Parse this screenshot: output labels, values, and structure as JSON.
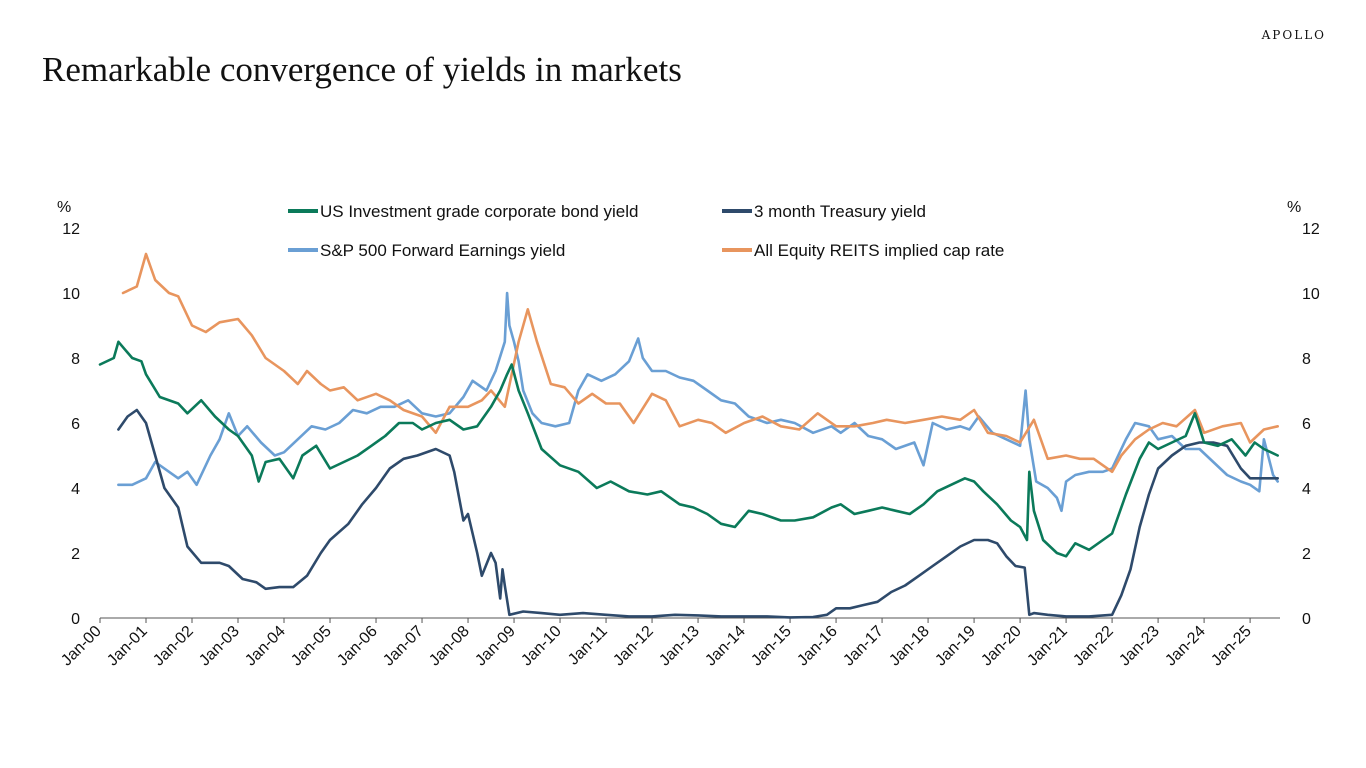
{
  "header": {
    "brand": "APOLLO",
    "title": "Remarkable convergence of  yields in markets"
  },
  "chart_data": {
    "type": "line",
    "title": "Remarkable convergence of  yields in markets",
    "y_unit_left": "%",
    "y_unit_right": "%",
    "ylim": [
      0,
      12
    ],
    "yticks": [
      0,
      2,
      4,
      6,
      8,
      10,
      12
    ],
    "xlim": [
      2000.0,
      2025.65
    ],
    "xtick_labels": [
      "Jan-00",
      "Jan-01",
      "Jan-02",
      "Jan-03",
      "Jan-04",
      "Jan-05",
      "Jan-06",
      "Jan-07",
      "Jan-08",
      "Jan-09",
      "Jan-10",
      "Jan-11",
      "Jan-12",
      "Jan-13",
      "Jan-14",
      "Jan-15",
      "Jan-16",
      "Jan-17",
      "Jan-18",
      "Jan-19",
      "Jan-20",
      "Jan-21",
      "Jan-22",
      "Jan-23",
      "Jan-24",
      "Jan-25"
    ],
    "xtick_positions": [
      2000,
      2001,
      2002,
      2003,
      2004,
      2005,
      2006,
      2007,
      2008,
      2009,
      2010,
      2011,
      2012,
      2013,
      2014,
      2015,
      2016,
      2017,
      2018,
      2019,
      2020,
      2021,
      2022,
      2023,
      2024,
      2025
    ],
    "grid": false,
    "legend_position": "top-center",
    "series": [
      {
        "name": "US Investment grade corporate bond yield",
        "color": "#0b7a5a",
        "x": [
          2000.0,
          2000.3,
          2000.4,
          2000.7,
          2000.9,
          2001.0,
          2001.3,
          2001.7,
          2001.9,
          2002.2,
          2002.5,
          2002.8,
          2003.0,
          2003.3,
          2003.45,
          2003.6,
          2003.9,
          2004.2,
          2004.4,
          2004.7,
          2005.0,
          2005.3,
          2005.6,
          2005.9,
          2006.2,
          2006.5,
          2006.8,
          2007.0,
          2007.3,
          2007.6,
          2007.9,
          2008.2,
          2008.5,
          2008.7,
          2008.85,
          2008.95,
          2009.1,
          2009.3,
          2009.6,
          2010.0,
          2010.4,
          2010.8,
          2011.1,
          2011.5,
          2011.9,
          2012.2,
          2012.6,
          2012.9,
          2013.2,
          2013.5,
          2013.8,
          2014.1,
          2014.4,
          2014.8,
          2015.1,
          2015.5,
          2015.9,
          2016.1,
          2016.4,
          2016.7,
          2017.0,
          2017.3,
          2017.6,
          2017.9,
          2018.2,
          2018.5,
          2018.8,
          2019.0,
          2019.2,
          2019.5,
          2019.8,
          2020.0,
          2020.15,
          2020.2,
          2020.3,
          2020.5,
          2020.8,
          2021.0,
          2021.2,
          2021.5,
          2021.8,
          2022.0,
          2022.3,
          2022.6,
          2022.8,
          2023.0,
          2023.3,
          2023.6,
          2023.8,
          2024.0,
          2024.3,
          2024.6,
          2024.9,
          2025.1,
          2025.3,
          2025.6
        ],
        "values": [
          7.8,
          8.0,
          8.5,
          8.0,
          7.9,
          7.5,
          6.8,
          6.6,
          6.3,
          6.7,
          6.2,
          5.8,
          5.6,
          5.0,
          4.2,
          4.8,
          4.9,
          4.3,
          5.0,
          5.3,
          4.6,
          4.8,
          5.0,
          5.3,
          5.6,
          6.0,
          6.0,
          5.8,
          6.0,
          6.1,
          5.8,
          5.9,
          6.5,
          7.0,
          7.5,
          7.8,
          7.0,
          6.3,
          5.2,
          4.7,
          4.5,
          4.0,
          4.2,
          3.9,
          3.8,
          3.9,
          3.5,
          3.4,
          3.2,
          2.9,
          2.8,
          3.3,
          3.2,
          3.0,
          3.0,
          3.1,
          3.4,
          3.5,
          3.2,
          3.3,
          3.4,
          3.3,
          3.2,
          3.5,
          3.9,
          4.1,
          4.3,
          4.2,
          3.9,
          3.5,
          3.0,
          2.8,
          2.4,
          4.5,
          3.3,
          2.4,
          2.0,
          1.9,
          2.3,
          2.1,
          2.4,
          2.6,
          3.8,
          4.9,
          5.4,
          5.2,
          5.4,
          5.6,
          6.3,
          5.4,
          5.3,
          5.5,
          5.0,
          5.4,
          5.2,
          5.0
        ]
      },
      {
        "name": "3 month Treasury yield",
        "color": "#2e4a6b",
        "x": [
          2000.4,
          2000.6,
          2000.8,
          2001.0,
          2001.2,
          2001.4,
          2001.6,
          2001.7,
          2001.9,
          2002.2,
          2002.6,
          2002.8,
          2003.1,
          2003.4,
          2003.6,
          2003.9,
          2004.2,
          2004.5,
          2004.8,
          2005.0,
          2005.4,
          2005.7,
          2006.0,
          2006.3,
          2006.6,
          2006.9,
          2007.3,
          2007.6,
          2007.7,
          2007.9,
          2008.0,
          2008.2,
          2008.3,
          2008.5,
          2008.6,
          2008.7,
          2008.75,
          2008.8,
          2008.9,
          2009.2,
          2009.6,
          2010.0,
          2010.5,
          2011.0,
          2011.5,
          2012.0,
          2012.5,
          2013.0,
          2013.5,
          2014.0,
          2014.5,
          2015.0,
          2015.5,
          2015.8,
          2016.0,
          2016.3,
          2016.6,
          2016.9,
          2017.2,
          2017.5,
          2017.8,
          2018.1,
          2018.4,
          2018.7,
          2019.0,
          2019.3,
          2019.5,
          2019.7,
          2019.9,
          2020.1,
          2020.2,
          2020.3,
          2020.6,
          2021.0,
          2021.5,
          2022.0,
          2022.2,
          2022.4,
          2022.6,
          2022.8,
          2023.0,
          2023.3,
          2023.6,
          2023.9,
          2024.2,
          2024.5,
          2024.8,
          2025.0,
          2025.3,
          2025.6
        ],
        "values": [
          5.8,
          6.2,
          6.4,
          6.0,
          5.0,
          4.0,
          3.6,
          3.4,
          2.2,
          1.7,
          1.7,
          1.6,
          1.2,
          1.1,
          0.9,
          0.95,
          0.95,
          1.3,
          2.0,
          2.4,
          2.9,
          3.5,
          4.0,
          4.6,
          4.9,
          5.0,
          5.2,
          5.0,
          4.5,
          3.0,
          3.2,
          2.0,
          1.3,
          2.0,
          1.7,
          0.6,
          1.5,
          1.0,
          0.1,
          0.2,
          0.15,
          0.1,
          0.15,
          0.1,
          0.05,
          0.05,
          0.1,
          0.08,
          0.05,
          0.05,
          0.05,
          0.02,
          0.03,
          0.1,
          0.3,
          0.3,
          0.4,
          0.5,
          0.8,
          1.0,
          1.3,
          1.6,
          1.9,
          2.2,
          2.4,
          2.4,
          2.3,
          1.9,
          1.6,
          1.55,
          0.1,
          0.15,
          0.1,
          0.05,
          0.05,
          0.1,
          0.7,
          1.5,
          2.8,
          3.8,
          4.6,
          5.0,
          5.3,
          5.4,
          5.4,
          5.3,
          4.6,
          4.3,
          4.3,
          4.3
        ]
      },
      {
        "name": "S&P 500 Forward Earnings yield",
        "color": "#6a9fd4",
        "x": [
          2000.4,
          2000.7,
          2001.0,
          2001.2,
          2001.5,
          2001.7,
          2001.9,
          2002.1,
          2002.4,
          2002.6,
          2002.8,
          2003.0,
          2003.2,
          2003.5,
          2003.8,
          2004.0,
          2004.3,
          2004.6,
          2004.9,
          2005.2,
          2005.5,
          2005.8,
          2006.1,
          2006.4,
          2006.7,
          2007.0,
          2007.3,
          2007.6,
          2007.9,
          2008.1,
          2008.4,
          2008.6,
          2008.8,
          2008.85,
          2008.9,
          2009.0,
          2009.1,
          2009.2,
          2009.4,
          2009.6,
          2009.9,
          2010.2,
          2010.4,
          2010.6,
          2010.9,
          2011.2,
          2011.5,
          2011.7,
          2011.8,
          2012.0,
          2012.3,
          2012.6,
          2012.9,
          2013.2,
          2013.5,
          2013.8,
          2014.1,
          2014.5,
          2014.8,
          2015.1,
          2015.5,
          2015.9,
          2016.1,
          2016.4,
          2016.7,
          2017.0,
          2017.3,
          2017.7,
          2017.9,
          2018.1,
          2018.4,
          2018.7,
          2018.9,
          2019.1,
          2019.4,
          2019.7,
          2020.0,
          2020.12,
          2020.2,
          2020.35,
          2020.6,
          2020.8,
          2020.9,
          2021.0,
          2021.2,
          2021.5,
          2021.8,
          2022.0,
          2022.3,
          2022.5,
          2022.8,
          2023.0,
          2023.3,
          2023.6,
          2023.9,
          2024.2,
          2024.5,
          2024.8,
          2025.0,
          2025.2,
          2025.3,
          2025.5,
          2025.6
        ],
        "values": [
          4.1,
          4.1,
          4.3,
          4.8,
          4.5,
          4.3,
          4.5,
          4.1,
          5.0,
          5.5,
          6.3,
          5.6,
          5.9,
          5.4,
          5.0,
          5.1,
          5.5,
          5.9,
          5.8,
          6.0,
          6.4,
          6.3,
          6.5,
          6.5,
          6.7,
          6.3,
          6.2,
          6.3,
          6.8,
          7.3,
          7.0,
          7.6,
          8.5,
          10.0,
          9.0,
          8.5,
          7.9,
          7.0,
          6.3,
          6.0,
          5.9,
          6.0,
          7.0,
          7.5,
          7.3,
          7.5,
          7.9,
          8.6,
          8.0,
          7.6,
          7.6,
          7.4,
          7.3,
          7.0,
          6.7,
          6.6,
          6.2,
          6.0,
          6.1,
          6.0,
          5.7,
          5.9,
          5.7,
          6.0,
          5.6,
          5.5,
          5.2,
          5.4,
          4.7,
          6.0,
          5.8,
          5.9,
          5.8,
          6.2,
          5.7,
          5.5,
          5.3,
          7.0,
          5.5,
          4.2,
          4.0,
          3.7,
          3.3,
          4.2,
          4.4,
          4.5,
          4.5,
          4.6,
          5.5,
          6.0,
          5.9,
          5.5,
          5.6,
          5.2,
          5.2,
          4.8,
          4.4,
          4.2,
          4.1,
          3.9,
          5.5,
          4.4,
          4.2
        ]
      },
      {
        "name": "All Equity REITS implied cap rate",
        "color": "#e8955e",
        "x": [
          2000.5,
          2000.8,
          2001.0,
          2001.2,
          2001.5,
          2001.7,
          2002.0,
          2002.3,
          2002.6,
          2003.0,
          2003.3,
          2003.6,
          2004.0,
          2004.3,
          2004.5,
          2004.8,
          2005.0,
          2005.3,
          2005.6,
          2006.0,
          2006.3,
          2006.6,
          2007.0,
          2007.3,
          2007.6,
          2008.0,
          2008.3,
          2008.5,
          2008.8,
          2009.1,
          2009.3,
          2009.5,
          2009.8,
          2010.1,
          2010.4,
          2010.7,
          2011.0,
          2011.3,
          2011.6,
          2012.0,
          2012.3,
          2012.6,
          2013.0,
          2013.3,
          2013.6,
          2014.0,
          2014.4,
          2014.8,
          2015.2,
          2015.6,
          2016.0,
          2016.4,
          2016.8,
          2017.1,
          2017.5,
          2017.9,
          2018.3,
          2018.7,
          2019.0,
          2019.3,
          2019.7,
          2020.0,
          2020.3,
          2020.6,
          2021.0,
          2021.3,
          2021.6,
          2022.0,
          2022.2,
          2022.5,
          2022.8,
          2023.1,
          2023.4,
          2023.8,
          2024.0,
          2024.4,
          2024.8,
          2025.0,
          2025.3,
          2025.6
        ],
        "values": [
          10.0,
          10.2,
          11.2,
          10.4,
          10.0,
          9.9,
          9.0,
          8.8,
          9.1,
          9.2,
          8.7,
          8.0,
          7.6,
          7.2,
          7.6,
          7.2,
          7.0,
          7.1,
          6.7,
          6.9,
          6.7,
          6.4,
          6.2,
          5.7,
          6.5,
          6.5,
          6.7,
          7.0,
          6.5,
          8.5,
          9.5,
          8.5,
          7.2,
          7.1,
          6.6,
          6.9,
          6.6,
          6.6,
          6.0,
          6.9,
          6.7,
          5.9,
          6.1,
          6.0,
          5.7,
          6.0,
          6.2,
          5.9,
          5.8,
          6.3,
          5.9,
          5.9,
          6.0,
          6.1,
          6.0,
          6.1,
          6.2,
          6.1,
          6.4,
          5.7,
          5.6,
          5.4,
          6.1,
          4.9,
          5.0,
          4.9,
          4.9,
          4.5,
          5.0,
          5.5,
          5.8,
          6.0,
          5.9,
          6.4,
          5.7,
          5.9,
          6.0,
          5.4,
          5.8,
          5.9
        ]
      }
    ]
  }
}
